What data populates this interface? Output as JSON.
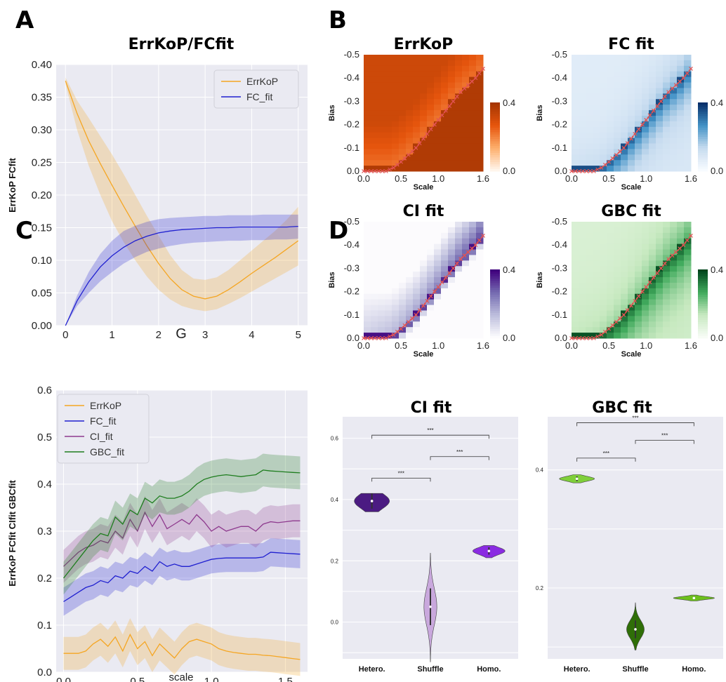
{
  "panel_labels": {
    "a": "A",
    "b": "B",
    "c": "C",
    "d": "D"
  },
  "colors": {
    "errkop": "#f5a623",
    "fc": "#2020d0",
    "ci": "#8e3a8e",
    "gbc": "#1e7d1e",
    "violin_ci_hetero": "#4b1b82",
    "violin_ci_shuffle": "#c9a8dd",
    "violin_ci_homo": "#8a2be2",
    "violin_gbc_hetero": "#7fcf3a",
    "violin_gbc_shuffle": "#2f6e08",
    "violin_gbc_homo": "#6cc01c"
  },
  "chart_data": [
    {
      "id": "A",
      "type": "line",
      "title": "ErrKoP/FCfit",
      "xlabel": "G",
      "ylabel": "ErrKoP  FCfit",
      "xlim": [
        -0.2,
        5.2
      ],
      "ylim": [
        0,
        0.4
      ],
      "xticks": [
        "0",
        "1",
        "2",
        "3",
        "4",
        "5"
      ],
      "yticks": [
        "0.00",
        "0.05",
        "0.10",
        "0.15",
        "0.20",
        "0.25",
        "0.30",
        "0.35",
        "0.40"
      ],
      "legend_position": "top-right",
      "grid": true,
      "x": [
        0,
        0.25,
        0.5,
        0.75,
        1,
        1.25,
        1.5,
        1.75,
        2,
        2.25,
        2.5,
        2.75,
        3,
        3.25,
        3.5,
        3.75,
        4,
        4.25,
        4.5,
        4.75,
        5
      ],
      "series": [
        {
          "name": "ErrKoP",
          "color_key": "errkop",
          "values": [
            0.375,
            0.325,
            0.283,
            0.248,
            0.215,
            0.183,
            0.152,
            0.122,
            0.095,
            0.072,
            0.055,
            0.045,
            0.041,
            0.045,
            0.055,
            0.067,
            0.08,
            0.092,
            0.104,
            0.117,
            0.13
          ],
          "lower": [
            0.37,
            0.3,
            0.245,
            0.2,
            0.16,
            0.128,
            0.1,
            0.075,
            0.055,
            0.04,
            0.03,
            0.025,
            0.022,
            0.025,
            0.033,
            0.042,
            0.052,
            0.062,
            0.072,
            0.082,
            0.092
          ],
          "upper": [
            0.38,
            0.345,
            0.318,
            0.29,
            0.262,
            0.232,
            0.2,
            0.168,
            0.138,
            0.108,
            0.085,
            0.072,
            0.07,
            0.074,
            0.085,
            0.1,
            0.115,
            0.13,
            0.145,
            0.162,
            0.182
          ]
        },
        {
          "name": "FC_fit",
          "color_key": "fc",
          "values": [
            0.0,
            0.038,
            0.067,
            0.09,
            0.107,
            0.12,
            0.13,
            0.137,
            0.142,
            0.145,
            0.147,
            0.148,
            0.149,
            0.15,
            0.15,
            0.151,
            0.151,
            0.151,
            0.151,
            0.151,
            0.152
          ],
          "lower": [
            0.0,
            0.03,
            0.05,
            0.068,
            0.082,
            0.095,
            0.105,
            0.113,
            0.118,
            0.122,
            0.125,
            0.127,
            0.128,
            0.129,
            0.13,
            0.13,
            0.131,
            0.131,
            0.132,
            0.132,
            0.133
          ],
          "upper": [
            0.0,
            0.046,
            0.082,
            0.11,
            0.13,
            0.145,
            0.153,
            0.159,
            0.163,
            0.165,
            0.166,
            0.167,
            0.168,
            0.168,
            0.169,
            0.169,
            0.169,
            0.17,
            0.17,
            0.17,
            0.17
          ]
        }
      ]
    },
    {
      "id": "B",
      "type": "heatmap",
      "xlabel": "Scale",
      "ylabel": "Bias",
      "xticks": [
        "0.0",
        "0.5",
        "1.0",
        "1.6"
      ],
      "yticks": [
        "-0.5",
        "-0.4",
        "-0.3",
        "-0.2",
        "-0.1",
        "0.0"
      ],
      "xlim": [
        0,
        1.6
      ],
      "ylim": [
        0,
        -0.5
      ],
      "colorbar_ticks": [
        "0.0",
        "0.4"
      ],
      "vmin": 0.0,
      "vmax": 0.4,
      "optimal_bias_path": {
        "x": [
          0,
          0.1,
          0.2,
          0.3,
          0.4,
          0.5,
          0.6,
          0.7,
          0.8,
          0.9,
          1.0,
          1.1,
          1.2,
          1.3,
          1.4,
          1.5,
          1.6
        ],
        "y": [
          0,
          0,
          0,
          0,
          -0.015,
          -0.04,
          -0.07,
          -0.1,
          -0.14,
          -0.18,
          -0.22,
          -0.26,
          -0.3,
          -0.34,
          -0.37,
          -0.4,
          -0.44
        ]
      },
      "maps": [
        {
          "title": "ErrKoP",
          "cmap": "oranges"
        },
        {
          "title": "FC fit",
          "cmap": "blues"
        },
        {
          "title": "CI fit",
          "cmap": "purples"
        },
        {
          "title": "GBC fit",
          "cmap": "greens"
        }
      ]
    },
    {
      "id": "C",
      "type": "line",
      "xlabel": "scale",
      "ylabel": "ErrKoP  FCfit  CIfit  GBCfit",
      "xlim": [
        -0.05,
        1.65
      ],
      "ylim": [
        0,
        0.6
      ],
      "xticks": [
        "0.0",
        "0.5",
        "1.0",
        "1.5"
      ],
      "yticks": [
        "0.0",
        "0.1",
        "0.2",
        "0.3",
        "0.4",
        "0.5",
        "0.6"
      ],
      "legend_position": "top-left",
      "grid": true,
      "x": [
        0,
        0.05,
        0.1,
        0.15,
        0.2,
        0.25,
        0.3,
        0.35,
        0.4,
        0.45,
        0.5,
        0.55,
        0.6,
        0.65,
        0.7,
        0.75,
        0.8,
        0.85,
        0.9,
        0.95,
        1.0,
        1.05,
        1.1,
        1.15,
        1.2,
        1.25,
        1.3,
        1.35,
        1.4,
        1.45,
        1.5,
        1.55,
        1.6
      ],
      "series": [
        {
          "name": "ErrKoP",
          "color_key": "errkop",
          "values": [
            0.04,
            0.04,
            0.04,
            0.045,
            0.06,
            0.07,
            0.055,
            0.075,
            0.045,
            0.08,
            0.05,
            0.065,
            0.035,
            0.06,
            0.045,
            0.03,
            0.05,
            0.065,
            0.07,
            0.065,
            0.06,
            0.05,
            0.045,
            0.042,
            0.04,
            0.038,
            0.038,
            0.036,
            0.035,
            0.033,
            0.031,
            0.029,
            0.027
          ],
          "band": 0.035
        },
        {
          "name": "FC_fit",
          "color_key": "fc",
          "values": [
            0.15,
            0.16,
            0.17,
            0.18,
            0.185,
            0.195,
            0.19,
            0.205,
            0.2,
            0.215,
            0.21,
            0.225,
            0.215,
            0.235,
            0.225,
            0.23,
            0.225,
            0.225,
            0.23,
            0.235,
            0.24,
            0.242,
            0.243,
            0.243,
            0.243,
            0.243,
            0.243,
            0.245,
            0.255,
            0.254,
            0.253,
            0.252,
            0.251
          ],
          "band": 0.03
        },
        {
          "name": "CI_fit",
          "color_key": "ci",
          "values": [
            0.225,
            0.24,
            0.255,
            0.265,
            0.27,
            0.28,
            0.275,
            0.3,
            0.285,
            0.325,
            0.3,
            0.34,
            0.31,
            0.335,
            0.305,
            0.315,
            0.325,
            0.315,
            0.335,
            0.32,
            0.3,
            0.31,
            0.3,
            0.305,
            0.31,
            0.31,
            0.3,
            0.315,
            0.32,
            0.318,
            0.32,
            0.322,
            0.322
          ],
          "band": 0.035
        },
        {
          "name": "GBC_fit",
          "color_key": "gbc",
          "values": [
            0.2,
            0.22,
            0.24,
            0.26,
            0.28,
            0.295,
            0.29,
            0.33,
            0.315,
            0.345,
            0.335,
            0.37,
            0.36,
            0.375,
            0.37,
            0.37,
            0.375,
            0.385,
            0.4,
            0.41,
            0.415,
            0.418,
            0.42,
            0.418,
            0.416,
            0.418,
            0.42,
            0.43,
            0.428,
            0.427,
            0.426,
            0.425,
            0.424
          ],
          "band": 0.035
        }
      ]
    },
    {
      "id": "D1",
      "type": "violin",
      "title": "CI fit",
      "categories": [
        "Hetero.",
        "Shuffle",
        "Homo."
      ],
      "yticks": [
        "0.0",
        "0.2",
        "0.4",
        "0.6"
      ],
      "ylim": [
        -0.12,
        0.67
      ],
      "grid": true,
      "violins": [
        {
          "category": "Hetero.",
          "center": 0.395,
          "spread": 0.025,
          "width": 0.6,
          "color_key": "violin_ci_hetero",
          "ymin": 0.36,
          "ymax": 0.42
        },
        {
          "category": "Shuffle",
          "center": 0.05,
          "spread": 0.06,
          "width": 0.22,
          "color_key": "violin_ci_shuffle",
          "ymin": -0.13,
          "ymax": 0.225
        },
        {
          "category": "Homo.",
          "center": 0.232,
          "spread": 0.012,
          "width": 0.55,
          "color_key": "violin_ci_homo",
          "ymin": 0.21,
          "ymax": 0.25
        }
      ],
      "significance": [
        {
          "from": 0,
          "to": 1,
          "y": 0.47,
          "label": "***"
        },
        {
          "from": 1,
          "to": 2,
          "y": 0.54,
          "label": "***"
        },
        {
          "from": 0,
          "to": 2,
          "y": 0.61,
          "label": "***"
        }
      ]
    },
    {
      "id": "D2",
      "type": "violin",
      "title": "GBC fit",
      "categories": [
        "Hetero.",
        "Shuffle",
        "Homo."
      ],
      "yticks": [
        "0.2",
        "0.4"
      ],
      "ylim": [
        0.08,
        0.49
      ],
      "grid": true,
      "violins": [
        {
          "category": "Hetero.",
          "center": 0.385,
          "spread": 0.004,
          "width": 0.6,
          "color_key": "violin_gbc_hetero",
          "ymin": 0.378,
          "ymax": 0.392
        },
        {
          "category": "Shuffle",
          "center": 0.13,
          "spread": 0.015,
          "width": 0.3,
          "color_key": "violin_gbc_shuffle",
          "ymin": 0.095,
          "ymax": 0.175
        },
        {
          "category": "Homo.",
          "center": 0.183,
          "spread": 0.0025,
          "width": 0.7,
          "color_key": "violin_gbc_homo",
          "ymin": 0.178,
          "ymax": 0.188
        }
      ],
      "significance": [
        {
          "from": 0,
          "to": 1,
          "y": 0.42,
          "label": "***"
        },
        {
          "from": 1,
          "to": 2,
          "y": 0.45,
          "label": "***"
        },
        {
          "from": 0,
          "to": 2,
          "y": 0.48,
          "label": "***"
        }
      ]
    }
  ]
}
